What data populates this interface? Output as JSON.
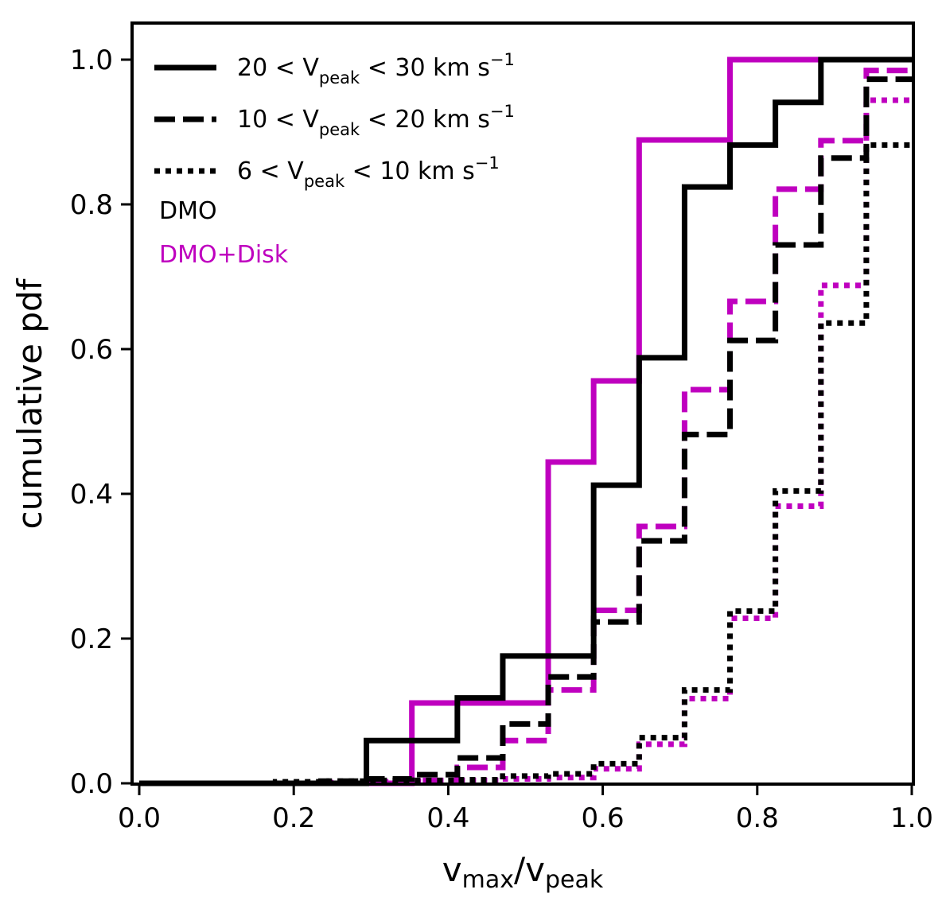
{
  "chart_data": {
    "type": "line",
    "xlabel": {
      "main": "v",
      "sub1": "max",
      "slash": "/v",
      "sub2": "peak"
    },
    "ylabel": "cumulative pdf",
    "xlim": [
      0.0,
      1.0
    ],
    "ylim": [
      0.0,
      1.05
    ],
    "xticks": [
      "0.0",
      "0.2",
      "0.4",
      "0.6",
      "0.8",
      "1.0"
    ],
    "yticks": [
      "0.0",
      "0.2",
      "0.4",
      "0.6",
      "0.8",
      "1.0"
    ],
    "bin_edges": [
      0.0,
      0.0588,
      0.1176,
      0.1765,
      0.2353,
      0.2941,
      0.3529,
      0.4118,
      0.4706,
      0.5294,
      0.5882,
      0.6471,
      0.7059,
      0.7647,
      0.8235,
      0.8824,
      0.9412,
      1.0
    ],
    "legend": [
      {
        "pre": "20 < V",
        "sub": "peak",
        "post": " < 30 km s",
        "sup": "−1",
        "style": "solid"
      },
      {
        "pre": "10 < V",
        "sub": "peak",
        "post": " < 20 km s",
        "sup": "−1",
        "style": "dashed"
      },
      {
        "pre": "6 < V",
        "sub": "peak",
        "post": " < 10 km s",
        "sup": "−1",
        "style": "dotted"
      }
    ],
    "notes": [
      {
        "text": "DMO",
        "color": "#000000"
      },
      {
        "text": "DMO+Disk",
        "color": "#bf00bf"
      }
    ],
    "series": [
      {
        "group": "DMO",
        "range_index": 0,
        "style": "solid",
        "color": "#000000",
        "values": [
          0,
          0,
          0,
          0,
          0,
          0.059,
          0.059,
          0.118,
          0.176,
          0.176,
          0.412,
          0.588,
          0.824,
          0.882,
          0.941,
          1.0,
          1.0
        ]
      },
      {
        "group": "DMO+Disk",
        "range_index": 0,
        "style": "solid",
        "color": "#bf00bf",
        "values": [
          0,
          0,
          0,
          0,
          0,
          0,
          0.111,
          0.111,
          0.111,
          0.444,
          0.556,
          0.889,
          0.889,
          1.0,
          1.0,
          1.0,
          1.0
        ]
      },
      {
        "group": "DMO",
        "range_index": 1,
        "style": "dashed",
        "color": "#000000",
        "values": [
          0,
          0,
          0,
          0,
          0.003,
          0.006,
          0.012,
          0.035,
          0.082,
          0.147,
          0.223,
          0.335,
          0.482,
          0.612,
          0.744,
          0.864,
          0.973
        ]
      },
      {
        "group": "DMO+Disk",
        "range_index": 1,
        "style": "dashed",
        "color": "#bf00bf",
        "values": [
          0,
          0,
          0,
          0,
          0,
          0,
          0.004,
          0.022,
          0.059,
          0.129,
          0.239,
          0.355,
          0.544,
          0.666,
          0.821,
          0.888,
          0.985
        ]
      },
      {
        "group": "DMO",
        "range_index": 2,
        "style": "dotted",
        "color": "#000000",
        "values": [
          0,
          0,
          0,
          0.002,
          0.003,
          0.004,
          0.004,
          0.005,
          0.01,
          0.013,
          0.027,
          0.063,
          0.129,
          0.238,
          0.404,
          0.636,
          0.882
        ]
      },
      {
        "group": "DMO+Disk",
        "range_index": 2,
        "style": "dotted",
        "color": "#bf00bf",
        "values": [
          0,
          0,
          0,
          0,
          0.001,
          0.002,
          0.003,
          0.004,
          0.006,
          0.008,
          0.02,
          0.054,
          0.117,
          0.228,
          0.383,
          0.688,
          0.944
        ]
      }
    ],
    "grid": false,
    "legend_placement": "top-left"
  }
}
